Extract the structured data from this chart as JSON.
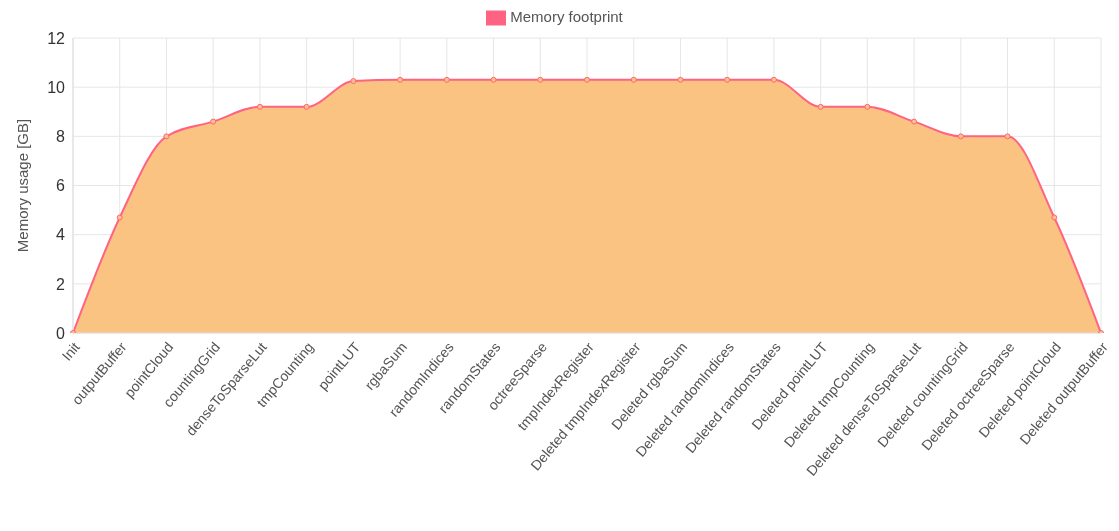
{
  "chart_data": {
    "type": "area",
    "ylabel": "Memory usage [GB]",
    "categories": [
      "Init",
      "outputBuffer",
      "pointCloud",
      "countingGrid",
      "denseToSparseLut",
      "tmpCounting",
      "pointLUT",
      "rgbaSum",
      "randomIndices",
      "randomStates",
      "octreeSparse",
      "tmpIndexRegister",
      "Deleted tmpIndexRegister",
      "Deleted rgbaSum",
      "Deleted randomIndices",
      "Deleted randomStates",
      "Deleted pointLUT",
      "Deleted tmpCounting",
      "Deleted denseToSparseLut",
      "Deleted countingGrid",
      "Deleted octreeSparse",
      "Deleted pointCloud",
      "Deleted outputBuffer"
    ],
    "series": [
      {
        "name": "Memory footprint",
        "color": "#fbc381",
        "values": [
          0,
          4.7,
          8.0,
          8.6,
          9.2,
          9.2,
          10.25,
          10.3,
          10.3,
          10.3,
          10.3,
          10.3,
          10.3,
          10.3,
          10.3,
          10.3,
          9.2,
          9.2,
          8.6,
          8.0,
          8.0,
          4.7,
          0
        ]
      }
    ],
    "ylim": [
      0,
      12
    ],
    "yticks": [
      0,
      2,
      4,
      6,
      8,
      10,
      12
    ],
    "grid": true,
    "legend": "top",
    "marker": "circle"
  }
}
